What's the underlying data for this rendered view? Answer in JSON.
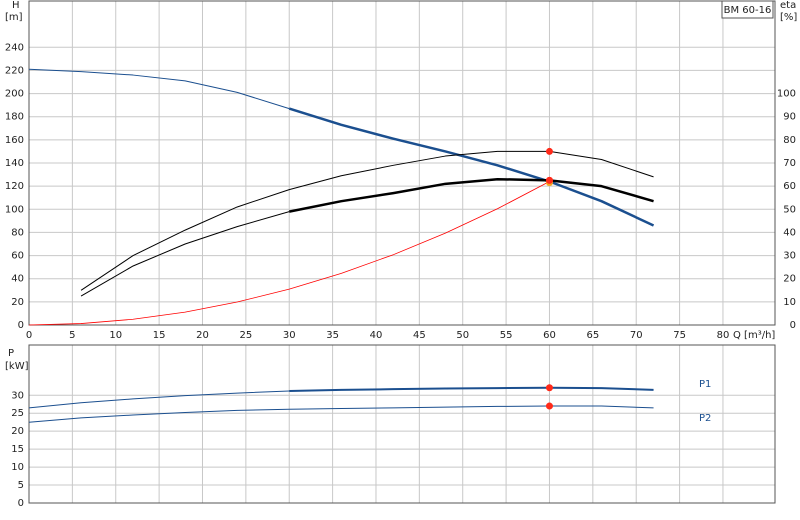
{
  "chart_data": [
    {
      "type": "line",
      "title": "BM 60-16",
      "ylabel": "H",
      "yunit": "[m]",
      "y2label": "eta",
      "y2unit": "[%]",
      "xlabel": "Q [m³/h]",
      "xlim": [
        0,
        86
      ],
      "xticks": [
        0,
        5,
        10,
        15,
        20,
        25,
        30,
        35,
        40,
        45,
        50,
        55,
        60,
        65,
        70,
        75,
        80
      ],
      "ylim": [
        0,
        280
      ],
      "yticks": [
        0,
        20,
        40,
        60,
        80,
        100,
        120,
        140,
        160,
        180,
        200,
        220,
        240
      ],
      "y2lim": [
        0,
        140
      ],
      "y2ticks": [
        0,
        10,
        20,
        30,
        40,
        50,
        60,
        70,
        80,
        90,
        100
      ],
      "grid": true,
      "xtick_labels": true,
      "series": [
        {
          "color": "#1b4f8f",
          "width": 1,
          "x": [
            0,
            6,
            12,
            18,
            24,
            30
          ],
          "values": [
            221,
            219,
            216,
            211,
            201,
            187
          ]
        },
        {
          "color": "#1b4f8f",
          "width": 2.5,
          "x": [
            30,
            36,
            42,
            48,
            54,
            60,
            66,
            72
          ],
          "values": [
            187,
            173,
            161,
            150,
            138,
            124,
            107,
            86
          ]
        },
        {
          "color": "#000000",
          "width": 1,
          "axis": "y2",
          "x": [
            6,
            12,
            18,
            24,
            30,
            36,
            42,
            48,
            54,
            60,
            66,
            72
          ],
          "values": [
            15,
            30,
            41,
            51,
            58.5,
            64.5,
            69,
            73,
            75,
            75,
            71.5,
            64
          ]
        },
        {
          "color": "#000000",
          "width": 1,
          "axis": "y2",
          "x": [
            6,
            12,
            18,
            24,
            30
          ],
          "values": [
            12.5,
            25.5,
            35,
            42.5,
            49
          ]
        },
        {
          "color": "#000000",
          "width": 2.5,
          "axis": "y2",
          "x": [
            30,
            36,
            42,
            48,
            54,
            60,
            66,
            72
          ],
          "values": [
            49,
            53.5,
            57,
            61,
            63,
            62.5,
            60,
            53.5
          ]
        },
        {
          "color": "#ff0000",
          "width": 0.8,
          "x": [
            0,
            6,
            12,
            18,
            24,
            30,
            36,
            42,
            48,
            54,
            60
          ],
          "values": [
            0,
            1.24,
            4.96,
            11.16,
            19.84,
            31,
            44.64,
            60.76,
            79.36,
            100.44,
            124
          ]
        }
      ],
      "points": [
        {
          "x": 60,
          "y": 75,
          "axis": "y2",
          "color": "#ff2a1a"
        },
        {
          "x": 60,
          "y": 62.5,
          "axis": "y2",
          "color": "#ff2a1a"
        },
        {
          "x": 60,
          "y": 123,
          "color": "#f5a623"
        },
        {
          "x": 60,
          "y": 125,
          "color": "#ff2a1a"
        }
      ]
    },
    {
      "type": "line",
      "ylabel": "P",
      "yunit": "[kW]",
      "xlim": [
        0,
        86
      ],
      "xticks": [
        0,
        5,
        10,
        15,
        20,
        25,
        30,
        35,
        40,
        45,
        50,
        55,
        60,
        65,
        70,
        75,
        80
      ],
      "ylim": [
        0,
        44
      ],
      "yticks": [
        0,
        5,
        10,
        15,
        20,
        25,
        30
      ],
      "grid": true,
      "xtick_labels": false,
      "series": [
        {
          "color": "#1b4f8f",
          "width": 1,
          "x": [
            0,
            6,
            12,
            18,
            24,
            30
          ],
          "values": [
            26.5,
            27.9,
            29,
            29.9,
            30.6,
            31.2
          ]
        },
        {
          "color": "#1b4f8f",
          "width": 2,
          "label": "P1",
          "x": [
            30,
            36,
            42,
            48,
            54,
            60,
            66,
            72
          ],
          "values": [
            31.2,
            31.5,
            31.7,
            31.9,
            32,
            32.1,
            32,
            31.5
          ]
        },
        {
          "color": "#1b4f8f",
          "width": 1,
          "label": "P2",
          "x": [
            0,
            6,
            12,
            18,
            24,
            30,
            36,
            42,
            48,
            54,
            60,
            66,
            72
          ],
          "values": [
            22.5,
            23.7,
            24.5,
            25.2,
            25.8,
            26.1,
            26.3,
            26.5,
            26.7,
            26.9,
            27,
            27,
            26.5
          ]
        }
      ],
      "points": [
        {
          "x": 60,
          "y": 32.1,
          "color": "#ff2a1a"
        },
        {
          "x": 60,
          "y": 27,
          "color": "#ff2a1a"
        }
      ]
    }
  ]
}
